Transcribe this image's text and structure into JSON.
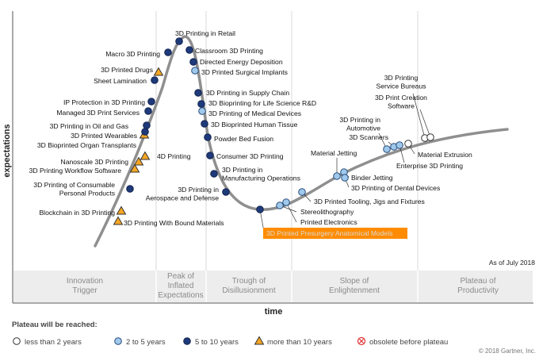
{
  "chart_data": {
    "type": "hype-cycle",
    "xlabel": "time",
    "ylabel": "expectations",
    "as_of": "As of July 2018",
    "copyright": "© 2018 Gartner, Inc.",
    "phases": [
      "Innovation Trigger",
      "Peak of Inflated Expectations",
      "Trough of Disillusionment",
      "Slope of Enlightenment",
      "Plateau of Productivity"
    ],
    "legend_title": "Plateau will be reached:",
    "legend": [
      {
        "key": "lt2",
        "label": "less than 2 years",
        "fill": "#ffffff",
        "stroke": "#333333",
        "shape": "circle"
      },
      {
        "key": "2to5",
        "label": "2 to 5 years",
        "fill": "#9fc9ec",
        "stroke": "#2a4d7a",
        "shape": "circle"
      },
      {
        "key": "5to10",
        "label": "5 to 10 years",
        "fill": "#1f3a7a",
        "stroke": "#12244f",
        "shape": "circle"
      },
      {
        "key": "gt10",
        "label": "more than 10 years",
        "fill": "#f5a623",
        "stroke": "#333333",
        "shape": "triangle"
      },
      {
        "key": "obs",
        "label": "obsolete before plateau",
        "fill": "#ffffff",
        "stroke": "#e03030",
        "shape": "cross"
      }
    ],
    "technologies": [
      {
        "name": "3D Printing With Bound Materials",
        "plateau": "gt10"
      },
      {
        "name": "Blockchain in 3D Printing",
        "plateau": "gt10"
      },
      {
        "name": "3D Printing of Consumable Personal Products",
        "plateau": "5to10"
      },
      {
        "name": "3D Printing Workflow Software",
        "plateau": "gt10"
      },
      {
        "name": "Nanoscale 3D Printing",
        "plateau": "gt10"
      },
      {
        "name": "4D Printing",
        "plateau": "gt10"
      },
      {
        "name": "3D Bioprinted Organ Transplants",
        "plateau": "gt10"
      },
      {
        "name": "3D Printed Wearables",
        "plateau": "5to10"
      },
      {
        "name": "3D Printing in Oil and Gas",
        "plateau": "5to10"
      },
      {
        "name": "Managed 3D Print Services",
        "plateau": "5to10"
      },
      {
        "name": "IP Protection in 3D Printing",
        "plateau": "5to10"
      },
      {
        "name": "Sheet Lamination",
        "plateau": "5to10"
      },
      {
        "name": "3D Printed Drugs",
        "plateau": "gt10"
      },
      {
        "name": "Macro 3D Printing",
        "plateau": "5to10"
      },
      {
        "name": "3D Printing in Retail",
        "plateau": "5to10"
      },
      {
        "name": "Classroom 3D Printing",
        "plateau": "5to10"
      },
      {
        "name": "Directed Energy Deposition",
        "plateau": "5to10"
      },
      {
        "name": "3D Printed Surgical Implants",
        "plateau": "2to5"
      },
      {
        "name": "3D Printing in Supply Chain",
        "plateau": "5to10"
      },
      {
        "name": "3D Bioprinting for Life Science R&D",
        "plateau": "5to10"
      },
      {
        "name": "3D Printing of Medical Devices",
        "plateau": "2to5"
      },
      {
        "name": "3D Bioprinted Human Tissue",
        "plateau": "5to10"
      },
      {
        "name": "Powder Bed Fusion",
        "plateau": "5to10"
      },
      {
        "name": "Consumer 3D Printing",
        "plateau": "5to10"
      },
      {
        "name": "3D Printing in Manufacturing Operations",
        "plateau": "5to10"
      },
      {
        "name": "3D Printing in Aerospace and Defense",
        "plateau": "5to10"
      },
      {
        "name": "3D Printed Presurgery Anatomical Models",
        "plateau": "5to10",
        "highlight": true
      },
      {
        "name": "Stereolithography",
        "plateau": "2to5"
      },
      {
        "name": "Printed Electronics",
        "plateau": "2to5"
      },
      {
        "name": "3D Printed Tooling, Jigs and Fixtures",
        "plateau": "2to5"
      },
      {
        "name": "Material Jetting",
        "plateau": "2to5"
      },
      {
        "name": "Binder Jetting",
        "plateau": "2to5"
      },
      {
        "name": "3D Printing of Dental Devices",
        "plateau": "2to5"
      },
      {
        "name": "3D Printing in Automotive",
        "plateau": "2to5"
      },
      {
        "name": "3D Scanners",
        "plateau": "2to5"
      },
      {
        "name": "Enterprise 3D Printing",
        "plateau": "2to5"
      },
      {
        "name": "3D Printing Service Bureaus",
        "plateau": "lt2"
      },
      {
        "name": "3D Print Creation Software",
        "plateau": "lt2"
      },
      {
        "name": "Material Extrusion",
        "plateau": "lt2"
      }
    ]
  }
}
